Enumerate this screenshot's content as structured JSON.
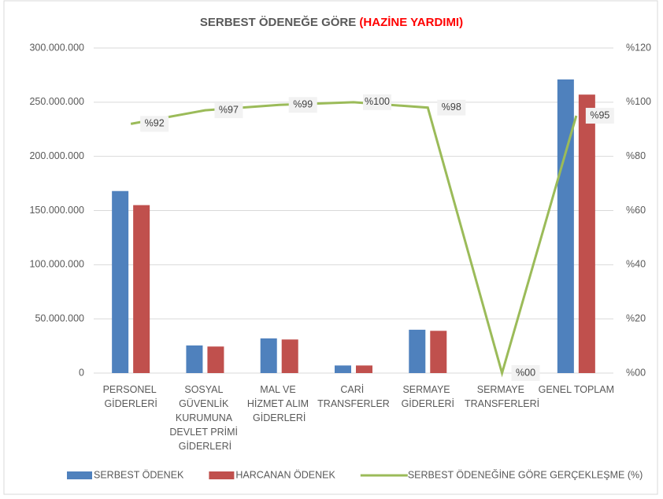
{
  "chart_data": {
    "type": "bar_line",
    "title": "SERBEST ÖDENEĞE GÖRE",
    "title_highlight": "(HAZİNE YARDIMI)",
    "categories": [
      "PERSONEL GİDERLERİ",
      "SOSYAL GÜVENLİK KURUMUNA DEVLET PRİMİ GİDERLERİ",
      "MAL VE HİZMET ALIM GİDERLERİ",
      "CARİ TRANSFERLER",
      "SERMAYE GİDERLERİ",
      "SERMAYE TRANSFERLERİ",
      "GENEL TOPLAM"
    ],
    "series": [
      {
        "name": "SERBEST ÖDENEK",
        "type": "bar",
        "color": "#4f81bd",
        "values": [
          168000000,
          25500000,
          32000000,
          7000000,
          40000000,
          0,
          271000000
        ]
      },
      {
        "name": "HARCANAN ÖDENEK",
        "type": "bar",
        "color": "#c0504d",
        "values": [
          155000000,
          24500000,
          31000000,
          7000000,
          39000000,
          0,
          257000000
        ]
      },
      {
        "name": "SERBEST ÖDENEĞİNE GÖRE GERÇEKLEŞME (%)",
        "type": "line",
        "axis": "y2",
        "color": "#9bbb59",
        "values": [
          92,
          97,
          99,
          100,
          98,
          0,
          95
        ],
        "value_labels": [
          "%92",
          "%97",
          "%99",
          "%100",
          "%98",
          "%00",
          "%95"
        ]
      }
    ],
    "ylim": [
      0,
      300000000
    ],
    "yticks": [
      0,
      {
        "value": 50000000,
        "label": "50.000.000"
      },
      {
        "value": 100000000,
        "label": "100.000.000"
      },
      {
        "value": 150000000,
        "label": "150.000.000"
      },
      {
        "value": 200000000,
        "label": "200.000.000"
      },
      {
        "value": 250000000,
        "label": "250.000.000"
      },
      {
        "value": 300000000,
        "label": "300.000.000"
      }
    ],
    "y2lim": [
      0,
      120
    ],
    "y2ticks": [
      {
        "value": 0,
        "label": "%00"
      },
      {
        "value": 20,
        "label": "%20"
      },
      {
        "value": 40,
        "label": "%40"
      },
      {
        "value": 60,
        "label": "%60"
      },
      {
        "value": 80,
        "label": "%80"
      },
      {
        "value": 100,
        "label": "%100"
      },
      {
        "value": 120,
        "label": "%120"
      }
    ],
    "grid": true,
    "legend": "bottom"
  }
}
